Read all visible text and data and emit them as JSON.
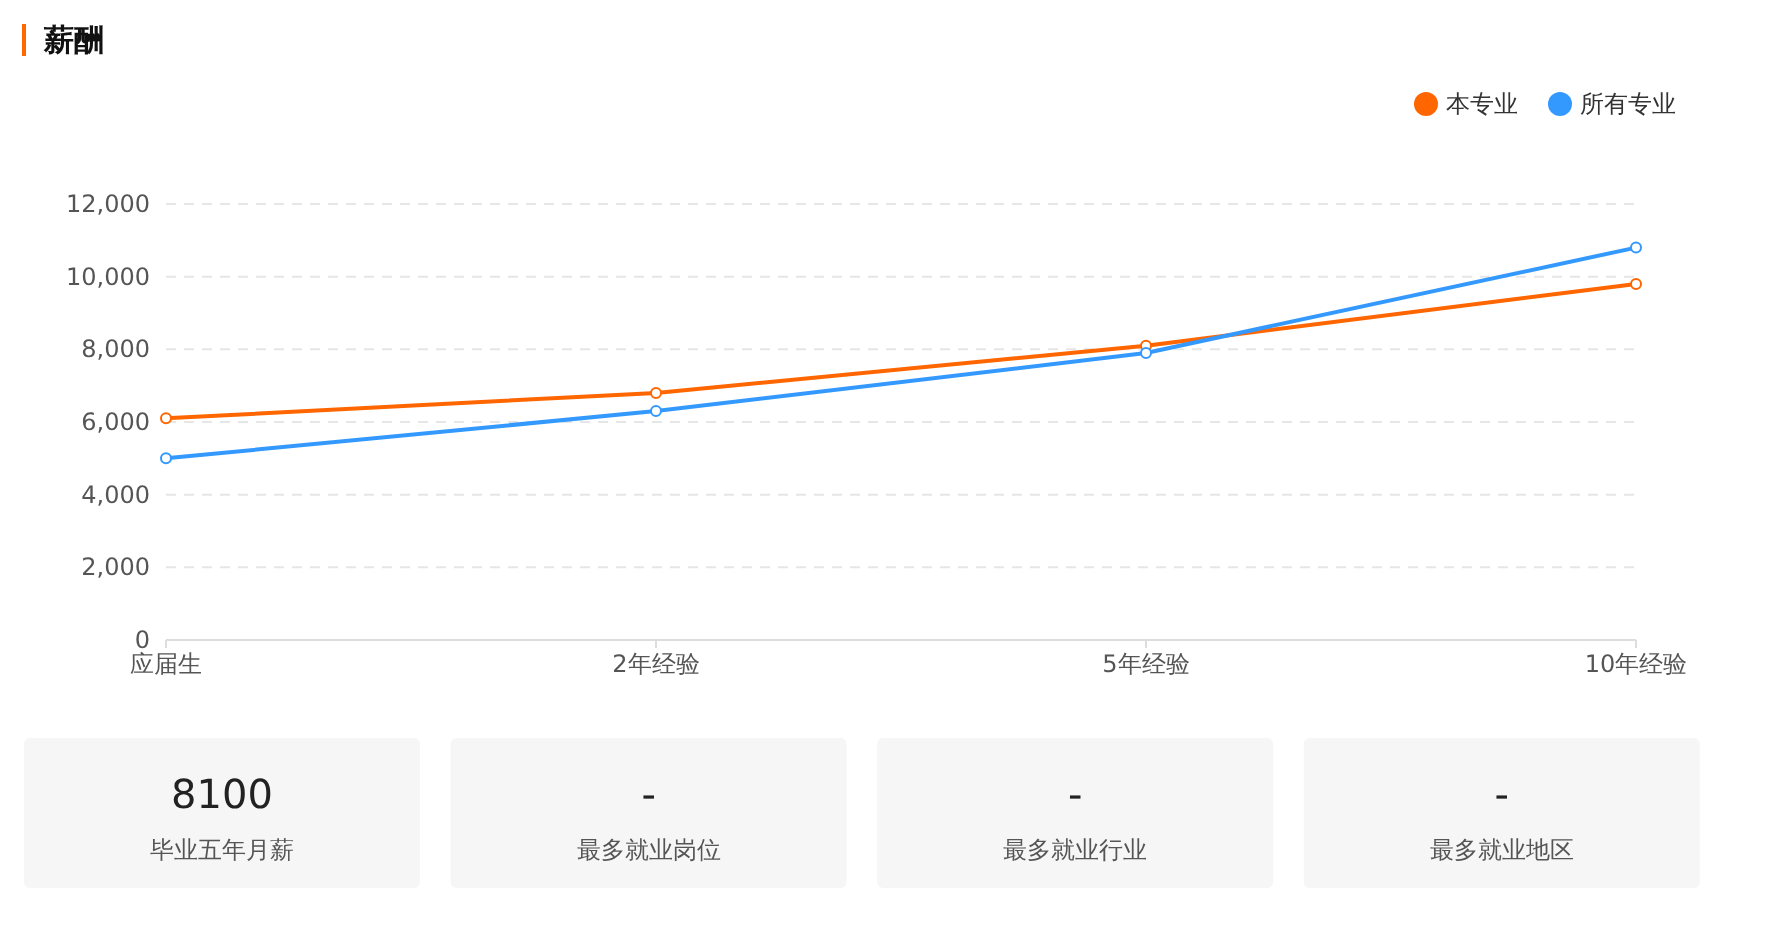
{
  "chart_data": [
    {
      "type": "line",
      "title": "薪酬",
      "categories": [
        "应届生",
        "2年经验",
        "5年经验",
        "10年经验"
      ],
      "series": [
        {
          "name": "本专业",
          "color": "#ff6600",
          "values": [
            6100,
            6800,
            8100,
            9800
          ]
        },
        {
          "name": "所有专业",
          "color": "#3399ff",
          "values": [
            5000,
            6300,
            7900,
            10800
          ]
        }
      ],
      "ylim": [
        0,
        12000
      ],
      "yticks": [
        {
          "value": 0,
          "label": "0"
        },
        {
          "value": 2000,
          "label": "2,000"
        },
        {
          "value": 4000,
          "label": "4,000"
        },
        {
          "value": 6000,
          "label": "6,000"
        },
        {
          "value": 8000,
          "label": "8,000"
        },
        {
          "value": 10000,
          "label": "10,000"
        },
        {
          "value": 12000,
          "label": "12,000"
        }
      ],
      "grid": "y",
      "legend": "top right",
      "marker": "circle",
      "line_style": "solid"
    },
    {
      "type": "other",
      "annotations": [
        "8100",
        "毕业五年月薪",
        "-",
        "最多就业岗位",
        "-",
        "最多就业行业",
        "-",
        "最多就业地区"
      ]
    }
  ]
}
